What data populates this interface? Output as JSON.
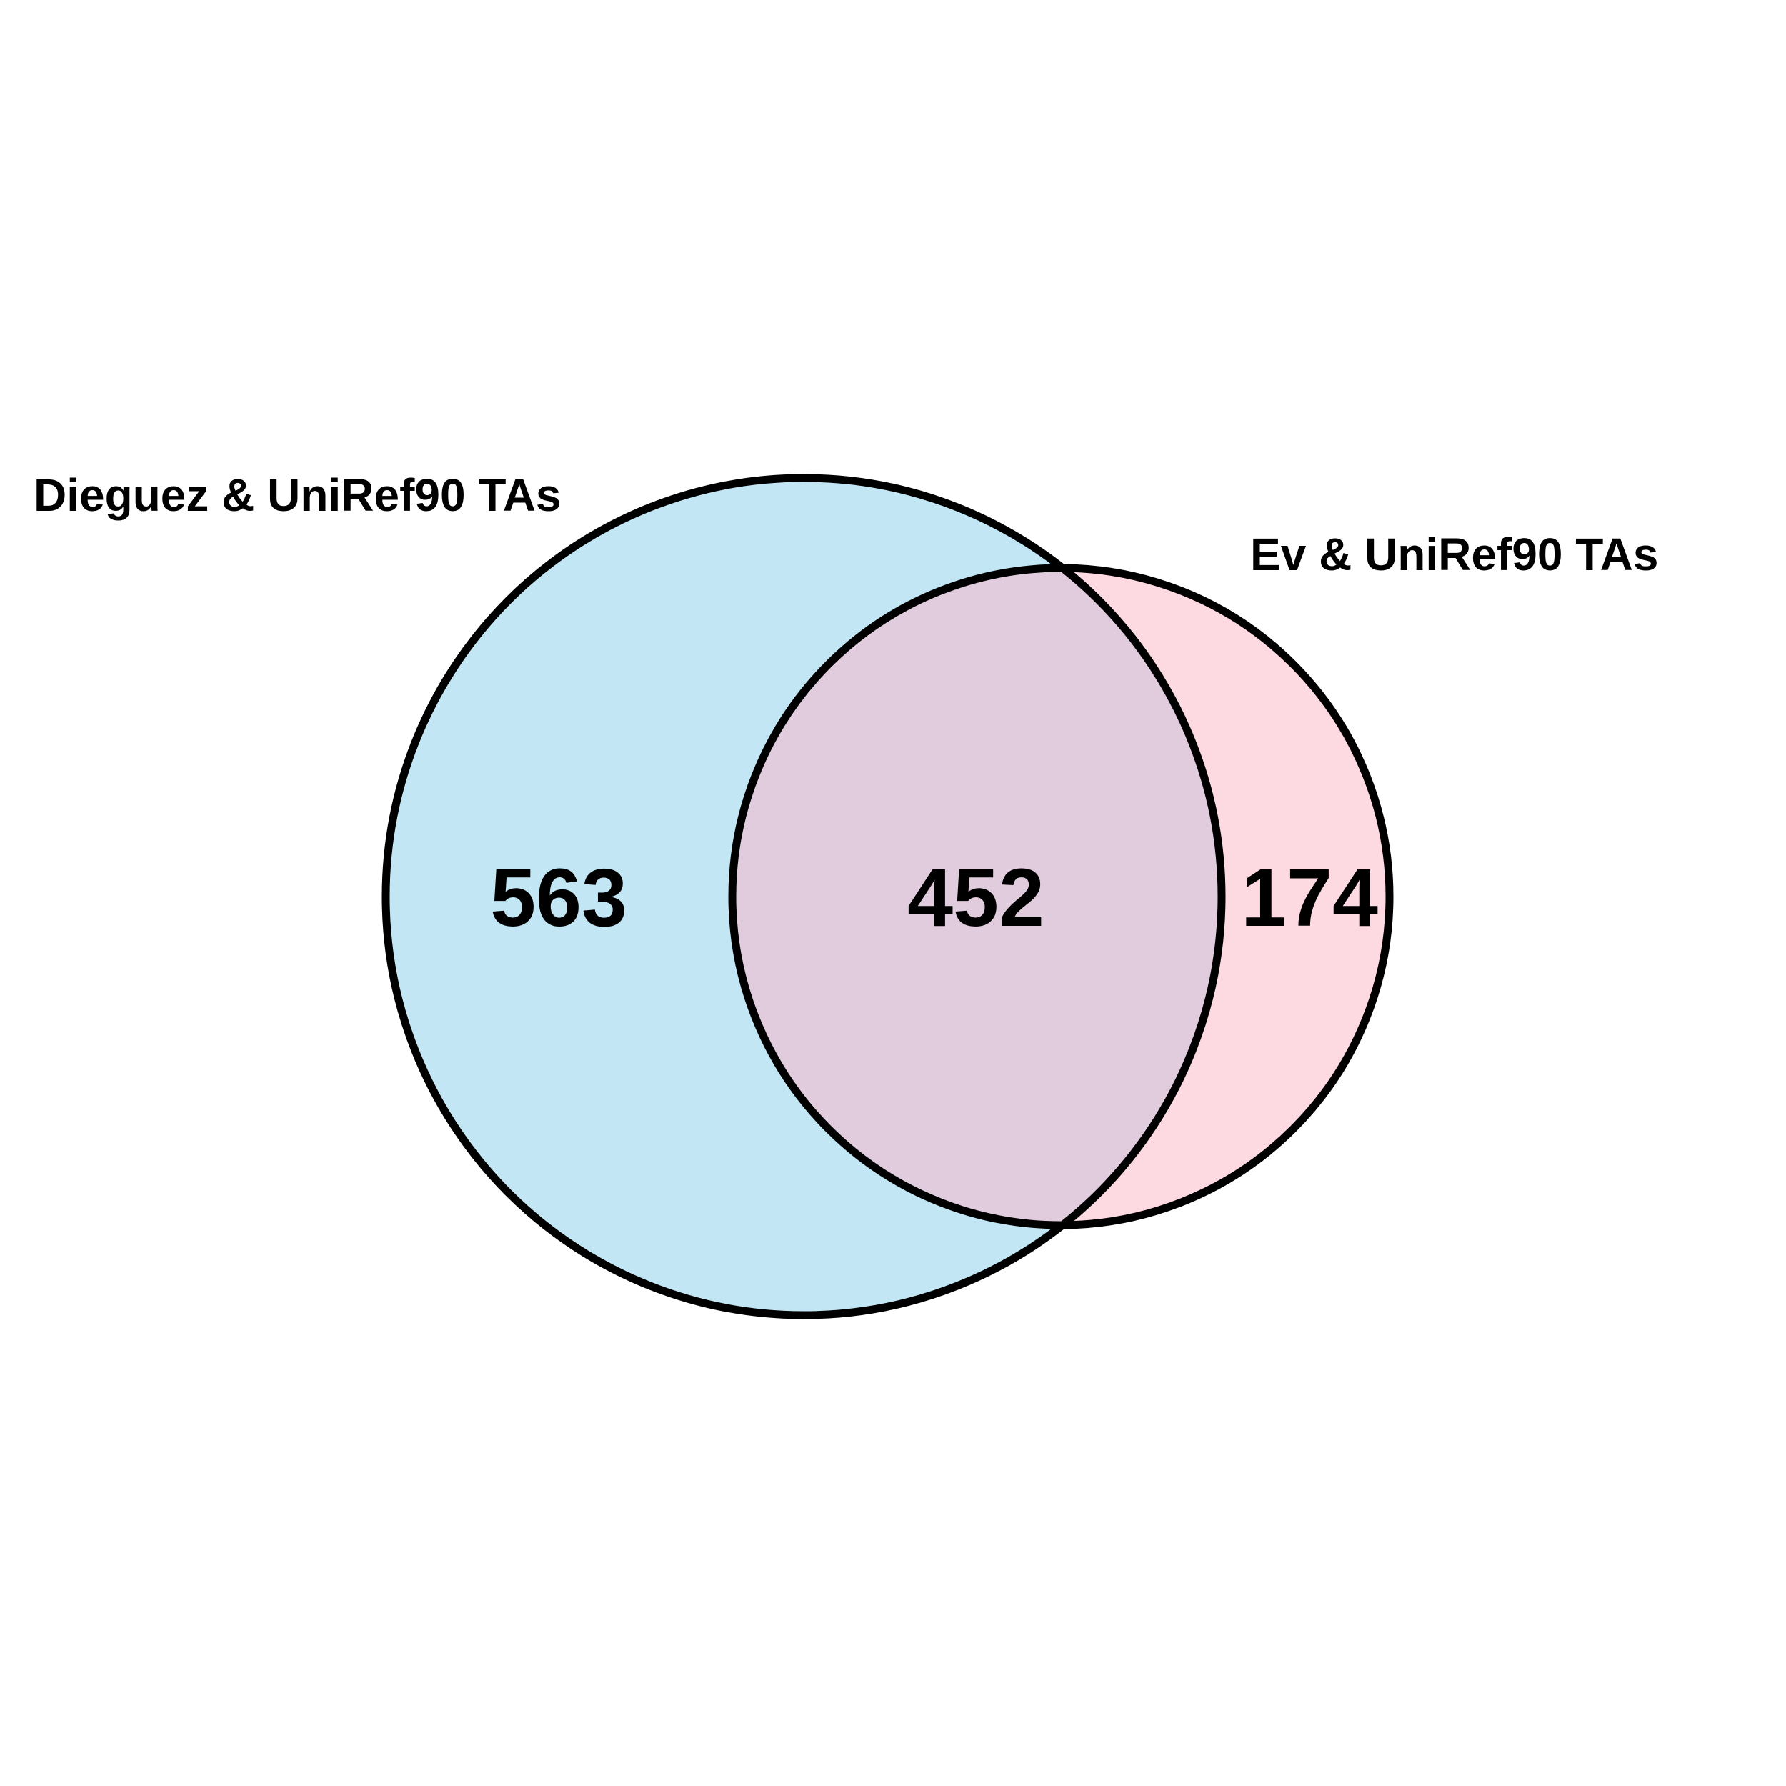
{
  "sets": [
    {
      "name": "Dieguez & UniRef90 TAs",
      "fill": "#C2E6F4"
    },
    {
      "name": "Ev & UniRef90 TAs",
      "fill": "#FDD9E2"
    }
  ],
  "overlap_fill": "#E1CCDD",
  "outline_color": "#000000",
  "counts": {
    "left_only": "563",
    "both": "452",
    "right_only": "174"
  }
}
